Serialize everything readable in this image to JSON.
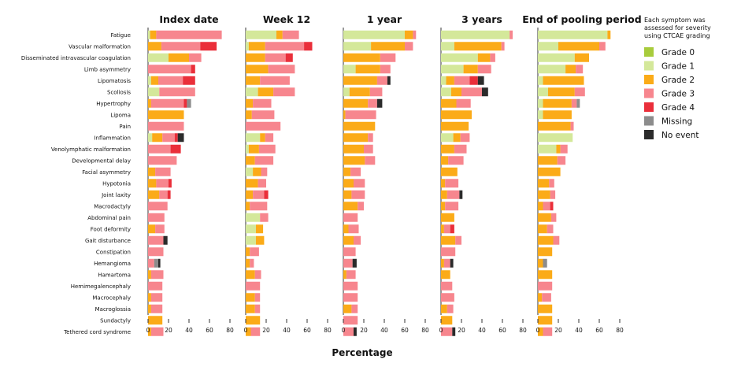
{
  "chart_data": {
    "type": "bar",
    "orientation": "horizontal",
    "stacked": true,
    "xlabel": "Percentage",
    "xlim": [
      0,
      80
    ],
    "xticks": [
      0,
      20,
      40,
      60,
      80
    ],
    "panels": [
      "Index date",
      "Week 12",
      "1 year",
      "3 years",
      "End of pooling period"
    ],
    "categories": [
      "Fatigue",
      "Vascular malformation",
      "Disseminated intravascular coagulation",
      "Limb asymmetry",
      "Lipomatosis",
      "Scoliosis",
      "Hypertrophy",
      "Lipoma",
      "Pain",
      "Inflammation",
      "Venolymphatic malformation",
      "Developmental delay",
      "Facial asymmetry",
      "Hypotonia",
      "Joint laxity",
      "Macrodactyly",
      "Abdominal pain",
      "Foot deformity",
      "Gait disturbance",
      "Constipation",
      "Hemangioma",
      "Hamartoma",
      "Hemimegalencephaly",
      "Macrocephaly",
      "Macroglossia",
      "Sundactyly",
      "Tethered cord syndrome"
    ],
    "legend_title": "Each symptom was assessed for severity using CTCAE grading",
    "series": [
      {
        "name": "Grade 0",
        "color": "#a8cc3c"
      },
      {
        "name": "Grade 1",
        "color": "#d4e89a"
      },
      {
        "name": "Grade 2",
        "color": "#fbab18"
      },
      {
        "name": "Grade 3",
        "color": "#f7868e"
      },
      {
        "name": "Grade 4",
        "color": "#ea2f3a"
      },
      {
        "name": "Missing",
        "color": "#8c8c8c"
      },
      {
        "name": "No event",
        "color": "#2b2b2b"
      }
    ],
    "data": {
      "Index date": [
        [
          0,
          2,
          6,
          64,
          0,
          0,
          0
        ],
        [
          0,
          0,
          13,
          38,
          16,
          0,
          0
        ],
        [
          0,
          20,
          20,
          12,
          0,
          0,
          0
        ],
        [
          0,
          0,
          0,
          42,
          4,
          0,
          0
        ],
        [
          0,
          3,
          7,
          24,
          12,
          0,
          0
        ],
        [
          0,
          11,
          0,
          35,
          0,
          0,
          0
        ],
        [
          0,
          0,
          3,
          32,
          3,
          4,
          0
        ],
        [
          0,
          0,
          35,
          0,
          0,
          0,
          0
        ],
        [
          0,
          0,
          0,
          35,
          0,
          0,
          0
        ],
        [
          0,
          4,
          10,
          12,
          3,
          0,
          6
        ],
        [
          0,
          0,
          0,
          22,
          10,
          0,
          0
        ],
        [
          0,
          0,
          0,
          28,
          0,
          0,
          0
        ],
        [
          0,
          0,
          7,
          15,
          0,
          0,
          0
        ],
        [
          0,
          0,
          8,
          12,
          3,
          0,
          0
        ],
        [
          0,
          0,
          11,
          8,
          3,
          0,
          0
        ],
        [
          0,
          0,
          0,
          19,
          0,
          0,
          0
        ],
        [
          0,
          0,
          0,
          16,
          0,
          0,
          0
        ],
        [
          0,
          0,
          7,
          9,
          0,
          0,
          0
        ],
        [
          0,
          0,
          0,
          15,
          0,
          0,
          4
        ],
        [
          0,
          0,
          0,
          15,
          0,
          0,
          0
        ],
        [
          0,
          0,
          0,
          6,
          0,
          4,
          2
        ],
        [
          0,
          0,
          3,
          12,
          0,
          0,
          0
        ],
        [
          0,
          0,
          0,
          14,
          0,
          0,
          0
        ],
        [
          0,
          0,
          3,
          11,
          0,
          0,
          0
        ],
        [
          0,
          0,
          3,
          11,
          0,
          0,
          0
        ],
        [
          0,
          0,
          14,
          0,
          0,
          0,
          0
        ],
        [
          0,
          0,
          3,
          12,
          0,
          0,
          0
        ]
      ],
      "Week 12": [
        [
          0,
          30,
          6,
          16,
          0,
          0,
          0
        ],
        [
          0,
          3,
          16,
          38,
          8,
          0,
          0
        ],
        [
          0,
          0,
          19,
          20,
          7,
          0,
          0
        ],
        [
          0,
          0,
          22,
          26,
          0,
          0,
          0
        ],
        [
          0,
          0,
          14,
          29,
          0,
          0,
          0
        ],
        [
          0,
          12,
          15,
          21,
          0,
          0,
          0
        ],
        [
          0,
          0,
          7,
          18,
          0,
          0,
          0
        ],
        [
          0,
          0,
          6,
          22,
          0,
          0,
          0
        ],
        [
          0,
          0,
          0,
          34,
          0,
          0,
          0
        ],
        [
          0,
          14,
          5,
          8,
          0,
          0,
          0
        ],
        [
          0,
          3,
          10,
          16,
          0,
          0,
          0
        ],
        [
          0,
          0,
          9,
          18,
          0,
          0,
          0
        ],
        [
          0,
          7,
          8,
          6,
          0,
          0,
          0
        ],
        [
          0,
          0,
          12,
          8,
          0,
          0,
          0
        ],
        [
          0,
          0,
          7,
          11,
          4,
          0,
          0
        ],
        [
          0,
          0,
          4,
          17,
          0,
          0,
          0
        ],
        [
          0,
          14,
          0,
          8,
          0,
          0,
          0
        ],
        [
          0,
          10,
          7,
          0,
          0,
          0,
          0
        ],
        [
          0,
          10,
          8,
          0,
          0,
          0,
          0
        ],
        [
          0,
          0,
          4,
          9,
          0,
          0,
          0
        ],
        [
          0,
          0,
          4,
          4,
          0,
          0,
          0
        ],
        [
          0,
          0,
          9,
          6,
          0,
          0,
          0
        ],
        [
          0,
          0,
          0,
          14,
          0,
          0,
          0
        ],
        [
          0,
          0,
          9,
          5,
          0,
          0,
          0
        ],
        [
          0,
          0,
          9,
          5,
          0,
          0,
          0
        ],
        [
          0,
          0,
          14,
          0,
          0,
          0,
          0
        ],
        [
          0,
          0,
          5,
          9,
          0,
          0,
          0
        ]
      ],
      "1 year": [
        [
          0,
          60,
          8,
          3,
          0,
          0,
          0
        ],
        [
          0,
          27,
          33,
          8,
          0,
          0,
          0
        ],
        [
          0,
          0,
          36,
          15,
          0,
          0,
          0
        ],
        [
          0,
          12,
          24,
          10,
          0,
          0,
          0
        ],
        [
          0,
          0,
          33,
          10,
          0,
          0,
          3
        ],
        [
          0,
          6,
          20,
          12,
          0,
          0,
          0
        ],
        [
          0,
          0,
          24,
          9,
          0,
          0,
          5
        ],
        [
          0,
          0,
          2,
          30,
          0,
          0,
          0
        ],
        [
          0,
          0,
          31,
          0,
          0,
          0,
          0
        ],
        [
          0,
          0,
          24,
          5,
          0,
          0,
          0
        ],
        [
          0,
          0,
          20,
          9,
          0,
          0,
          0
        ],
        [
          0,
          0,
          21,
          10,
          0,
          0,
          0
        ],
        [
          0,
          0,
          7,
          10,
          0,
          0,
          0
        ],
        [
          0,
          0,
          10,
          11,
          0,
          0,
          0
        ],
        [
          0,
          0,
          8,
          13,
          0,
          0,
          0
        ],
        [
          0,
          0,
          14,
          6,
          0,
          0,
          0
        ],
        [
          0,
          0,
          0,
          14,
          0,
          0,
          0
        ],
        [
          0,
          0,
          5,
          10,
          0,
          0,
          0
        ],
        [
          0,
          0,
          10,
          7,
          0,
          0,
          0
        ],
        [
          0,
          0,
          0,
          12,
          0,
          0,
          0
        ],
        [
          0,
          0,
          0,
          9,
          0,
          0,
          4
        ],
        [
          0,
          0,
          3,
          9,
          0,
          0,
          0
        ],
        [
          0,
          0,
          0,
          14,
          0,
          0,
          0
        ],
        [
          0,
          0,
          0,
          14,
          0,
          0,
          0
        ],
        [
          0,
          0,
          8,
          6,
          0,
          0,
          0
        ],
        [
          0,
          0,
          0,
          14,
          0,
          0,
          0
        ],
        [
          0,
          0,
          0,
          10,
          0,
          0,
          3
        ]
      ],
      "3 years": [
        [
          0,
          67,
          0,
          3,
          0,
          0,
          0
        ],
        [
          0,
          13,
          46,
          3,
          0,
          0,
          0
        ],
        [
          0,
          36,
          12,
          5,
          0,
          0,
          0
        ],
        [
          0,
          22,
          14,
          13,
          0,
          0,
          0
        ],
        [
          0,
          5,
          8,
          15,
          8,
          0,
          6
        ],
        [
          0,
          10,
          10,
          20,
          0,
          0,
          6
        ],
        [
          0,
          0,
          15,
          14,
          0,
          0,
          0
        ],
        [
          0,
          0,
          30,
          0,
          0,
          0,
          0
        ],
        [
          0,
          0,
          27,
          0,
          0,
          0,
          0
        ],
        [
          0,
          12,
          7,
          9,
          0,
          0,
          0
        ],
        [
          0,
          0,
          13,
          12,
          0,
          0,
          0
        ],
        [
          0,
          0,
          7,
          15,
          0,
          0,
          0
        ],
        [
          0,
          0,
          16,
          0,
          0,
          0,
          0
        ],
        [
          0,
          0,
          4,
          13,
          0,
          0,
          0
        ],
        [
          0,
          0,
          6,
          12,
          0,
          0,
          3
        ],
        [
          0,
          0,
          4,
          13,
          0,
          0,
          0
        ],
        [
          0,
          0,
          13,
          0,
          0,
          0,
          0
        ],
        [
          0,
          0,
          3,
          6,
          4,
          0,
          0
        ],
        [
          0,
          0,
          14,
          6,
          0,
          0,
          0
        ],
        [
          0,
          0,
          0,
          14,
          0,
          0,
          0
        ],
        [
          0,
          0,
          3,
          6,
          0,
          0,
          3
        ],
        [
          0,
          0,
          9,
          0,
          0,
          0,
          0
        ],
        [
          0,
          0,
          0,
          11,
          0,
          0,
          0
        ],
        [
          0,
          0,
          0,
          13,
          0,
          0,
          0
        ],
        [
          0,
          0,
          6,
          6,
          0,
          0,
          0
        ],
        [
          0,
          0,
          11,
          0,
          0,
          0,
          0
        ],
        [
          0,
          0,
          0,
          11,
          0,
          0,
          3
        ]
      ],
      "End of pooling period": [
        [
          0,
          68,
          3,
          0,
          0,
          0,
          0
        ],
        [
          0,
          20,
          40,
          6,
          0,
          0,
          0
        ],
        [
          0,
          36,
          14,
          0,
          0,
          0,
          0
        ],
        [
          0,
          27,
          10,
          7,
          0,
          0,
          0
        ],
        [
          0,
          5,
          40,
          0,
          0,
          0,
          0
        ],
        [
          0,
          10,
          26,
          10,
          0,
          0,
          0
        ],
        [
          0,
          5,
          28,
          5,
          0,
          3,
          0
        ],
        [
          0,
          5,
          28,
          0,
          0,
          0,
          0
        ],
        [
          0,
          0,
          32,
          3,
          0,
          0,
          0
        ],
        [
          0,
          34,
          0,
          0,
          0,
          0,
          0
        ],
        [
          0,
          18,
          4,
          7,
          0,
          0,
          0
        ],
        [
          0,
          0,
          19,
          8,
          0,
          0,
          0
        ],
        [
          0,
          0,
          22,
          0,
          0,
          0,
          0
        ],
        [
          0,
          0,
          11,
          5,
          0,
          0,
          0
        ],
        [
          0,
          0,
          12,
          5,
          0,
          0,
          0
        ],
        [
          0,
          0,
          5,
          7,
          3,
          0,
          0
        ],
        [
          0,
          0,
          13,
          5,
          0,
          0,
          0
        ],
        [
          0,
          0,
          9,
          6,
          0,
          0,
          0
        ],
        [
          0,
          0,
          15,
          6,
          0,
          0,
          0
        ],
        [
          0,
          0,
          14,
          0,
          0,
          0,
          0
        ],
        [
          0,
          0,
          5,
          0,
          0,
          4,
          0
        ],
        [
          0,
          0,
          14,
          0,
          0,
          0,
          0
        ],
        [
          0,
          0,
          0,
          14,
          0,
          0,
          0
        ],
        [
          0,
          0,
          4,
          9,
          0,
          0,
          0
        ],
        [
          0,
          0,
          14,
          0,
          0,
          0,
          0
        ],
        [
          0,
          0,
          14,
          0,
          0,
          0,
          0
        ],
        [
          0,
          0,
          5,
          9,
          0,
          0,
          0
        ]
      ]
    }
  }
}
